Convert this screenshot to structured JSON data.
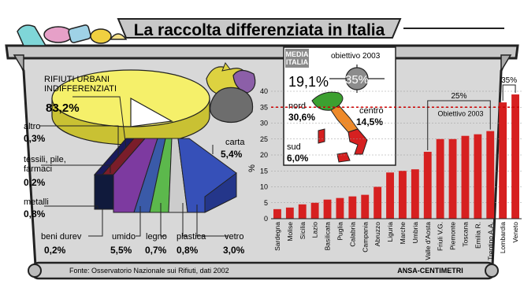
{
  "title": "La raccolta differenziata in Italia",
  "source": "Fonte: Osservatorio Nazionale sui Rifiuti, dati 2002",
  "credit": "ANSA-CENTIMETRI",
  "colors": {
    "bar": "#d62020",
    "target_line": "#cc0000",
    "pie": "#f5f06a",
    "bin": "#d8d8d8"
  },
  "pie_chart": {
    "main_label": [
      "RIFIUTI URBANI",
      "INDIFFERENZIATI"
    ],
    "main_value": "83,2%",
    "items": [
      {
        "label": [
          "altro"
        ],
        "value": "0,3%"
      },
      {
        "label": [
          "tessili, pile,",
          "farmaci"
        ],
        "value": "0,2%"
      },
      {
        "label": [
          "metalli"
        ],
        "value": "0,8%"
      },
      {
        "label": [
          "beni durev"
        ],
        "value": "0,2%"
      },
      {
        "label": [
          "umido"
        ],
        "value": "5,5%"
      },
      {
        "label": [
          "legno"
        ],
        "value": "0,7%"
      },
      {
        "label": [
          "plastica"
        ],
        "value": "0,8%"
      },
      {
        "label": [
          "vetro"
        ],
        "value": "3,0%"
      },
      {
        "label": [
          "carta"
        ],
        "value": "5,4%"
      }
    ]
  },
  "map_box": {
    "media_label": [
      "MEDIA",
      "ITALIA"
    ],
    "media_value": "19,1%",
    "objective_label": "obiettivo 2003",
    "objective_value": "35%",
    "regions": [
      {
        "name": "nord",
        "value": "30,6%"
      },
      {
        "name": "centro",
        "value": "14,5%"
      },
      {
        "name": "sud",
        "value": "6,0%"
      }
    ]
  },
  "chart_data": {
    "type": "bar",
    "categories": [
      "Sardegna",
      "Molise",
      "Sicilia",
      "Lazio",
      "Basilicata",
      "Puglia",
      "Calabria",
      "Campania",
      "Abruzzo",
      "Liguria",
      "Marche",
      "Umbria",
      "Valle d'Aosta",
      "Friuli V.G.",
      "Piemonte",
      "Toscana",
      "Emilia R.",
      "Trentino A.A.",
      "Lombardia",
      "Veneto"
    ],
    "values": [
      3,
      3.5,
      4.5,
      5,
      6,
      6.5,
      7,
      7.5,
      10,
      14.5,
      15,
      15.5,
      21,
      25,
      25,
      26,
      26.5,
      27.5,
      36.5,
      39
    ],
    "ylabel": "%",
    "ylim": [
      0,
      40
    ],
    "yticks": [
      0,
      5,
      10,
      15,
      20,
      25,
      30,
      35,
      40
    ],
    "reference_line": {
      "value": 35,
      "label": "Obiettivo 2003"
    },
    "annotations": [
      "25%",
      "35%"
    ]
  }
}
